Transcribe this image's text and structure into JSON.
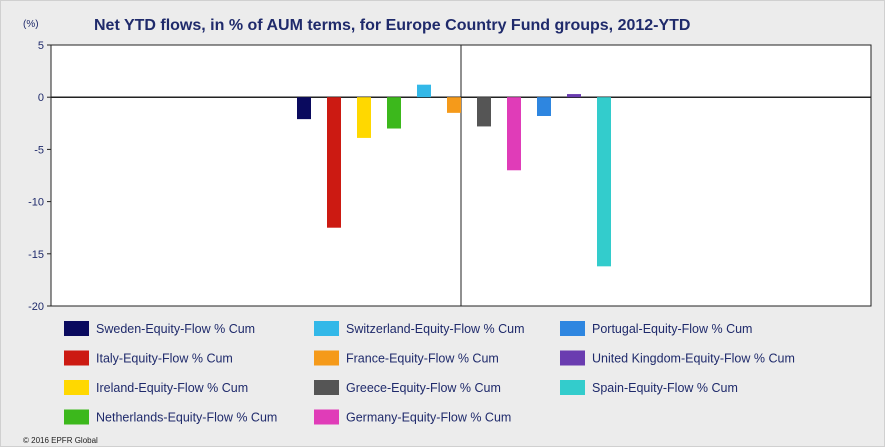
{
  "chart_data": {
    "type": "bar",
    "title": "Net YTD flows, in % of AUM terms, for Europe Country Fund groups, 2012-YTD",
    "ylabel": "(%)",
    "xlabel": "",
    "ylim": [
      -20,
      5
    ],
    "yticks": [
      5,
      0,
      -5,
      -10,
      -15,
      -20
    ],
    "grid": false,
    "legend_position": "bottom",
    "series": [
      {
        "name": "Sweden-Equity-Flow % Cum",
        "value": -2.1,
        "color": "#0a0a5e"
      },
      {
        "name": "Italy-Equity-Flow % Cum",
        "value": -12.5,
        "color": "#cc1a12"
      },
      {
        "name": "Ireland-Equity-Flow % Cum",
        "value": -3.9,
        "color": "#ffd800"
      },
      {
        "name": "Netherlands-Equity-Flow % Cum",
        "value": -3.0,
        "color": "#3cb81c"
      },
      {
        "name": "Switzerland-Equity-Flow % Cum",
        "value": 1.2,
        "color": "#33b8e8"
      },
      {
        "name": "France-Equity-Flow % Cum",
        "value": -1.5,
        "color": "#f59a1a"
      },
      {
        "name": "Greece-Equity-Flow % Cum",
        "value": -2.8,
        "color": "#555555"
      },
      {
        "name": "Germany-Equity-Flow % Cum",
        "value": -7.0,
        "color": "#e03cb8"
      },
      {
        "name": "Portugal-Equity-Flow % Cum",
        "value": -1.8,
        "color": "#2e86e0"
      },
      {
        "name": "United Kingdom-Equity-Flow % Cum",
        "value": 0.3,
        "color": "#6a3cb0"
      },
      {
        "name": "Spain-Equity-Flow % Cum",
        "value": -16.2,
        "color": "#33cccc"
      }
    ],
    "legend_order": [
      0,
      4,
      8,
      1,
      5,
      9,
      2,
      6,
      10,
      3,
      7
    ]
  },
  "copyright": "© 2016 EPFR Global"
}
